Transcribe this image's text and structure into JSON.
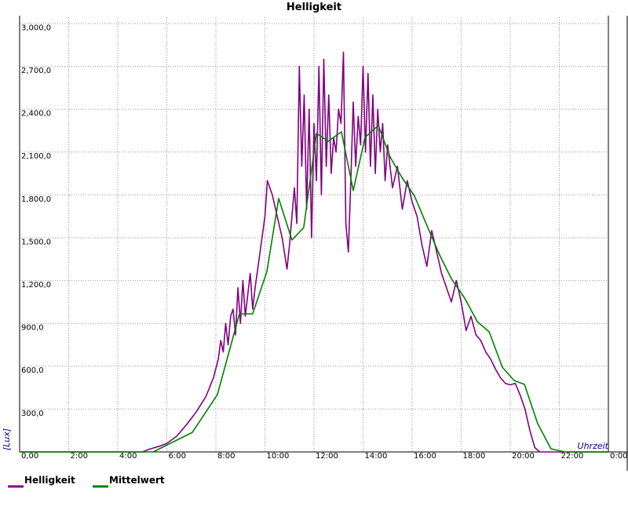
{
  "chart_data": {
    "type": "line",
    "title": "Helligkeit",
    "y_label": "[Lux]",
    "x_label": "Uhrzeit",
    "xlim": [
      0,
      24
    ],
    "ylim": [
      0,
      3000
    ],
    "xticks": [
      {
        "value": 0,
        "label": "0,00"
      },
      {
        "value": 2,
        "label": "2:00"
      },
      {
        "value": 4,
        "label": "4:00"
      },
      {
        "value": 6,
        "label": "6:00"
      },
      {
        "value": 8,
        "label": "8:00"
      },
      {
        "value": 10,
        "label": "10:00"
      },
      {
        "value": 12,
        "label": "12:00"
      },
      {
        "value": 14,
        "label": "14:00"
      },
      {
        "value": 16,
        "label": "16:00"
      },
      {
        "value": 18,
        "label": "18:00"
      },
      {
        "value": 20,
        "label": "20:00"
      },
      {
        "value": 22,
        "label": "22:00"
      },
      {
        "value": 24,
        "label": "0:00"
      }
    ],
    "yticks": [
      {
        "value": 300,
        "label": "300,0"
      },
      {
        "value": 600,
        "label": "600,0"
      },
      {
        "value": 900,
        "label": "900,0"
      },
      {
        "value": 1200,
        "label": "1,200,0"
      },
      {
        "value": 1500,
        "label": "1,500,0"
      },
      {
        "value": 1800,
        "label": "1,800,0"
      },
      {
        "value": 2100,
        "label": "2,100,0"
      },
      {
        "value": 2400,
        "label": "2,400,0"
      },
      {
        "value": 2700,
        "label": "2,700,0"
      },
      {
        "value": 3000,
        "label": "3,000,0"
      }
    ],
    "grid": true,
    "legend": "bottom",
    "series": [
      {
        "name": "Helligkeit",
        "color": "#800080",
        "x": [
          0,
          5.0,
          5.3,
          5.7,
          6.0,
          6.4,
          6.8,
          7.2,
          7.6,
          7.9,
          8.1,
          8.2,
          8.3,
          8.4,
          8.5,
          8.6,
          8.7,
          8.8,
          8.9,
          9.0,
          9.1,
          9.2,
          9.3,
          9.4,
          9.5,
          9.6,
          9.8,
          10.0,
          10.1,
          10.3,
          10.5,
          10.7,
          10.9,
          11.0,
          11.2,
          11.3,
          11.4,
          11.5,
          11.6,
          11.7,
          11.8,
          11.9,
          12.0,
          12.1,
          12.2,
          12.3,
          12.4,
          12.5,
          12.6,
          12.7,
          12.8,
          12.9,
          13.0,
          13.1,
          13.2,
          13.3,
          13.4,
          13.5,
          13.6,
          13.7,
          13.8,
          13.9,
          14.0,
          14.1,
          14.2,
          14.3,
          14.4,
          14.5,
          14.6,
          14.7,
          14.8,
          14.9,
          15.0,
          15.2,
          15.4,
          15.6,
          15.8,
          16.0,
          16.2,
          16.4,
          16.6,
          16.8,
          17.0,
          17.2,
          17.4,
          17.6,
          17.8,
          18.0,
          18.2,
          18.4,
          18.6,
          18.8,
          19.0,
          19.2,
          19.4,
          19.6,
          19.8,
          20.0,
          20.2,
          20.4,
          20.6,
          20.8,
          21.0,
          21.2,
          24
        ],
        "values": [
          0,
          0,
          20,
          40,
          60,
          110,
          190,
          280,
          390,
          520,
          650,
          780,
          700,
          900,
          750,
          950,
          1000,
          820,
          1150,
          900,
          1200,
          950,
          1100,
          1250,
          1000,
          1150,
          1400,
          1650,
          1900,
          1800,
          1650,
          1500,
          1280,
          1450,
          1850,
          1600,
          2700,
          2000,
          2500,
          1700,
          2400,
          1500,
          2300,
          1900,
          2700,
          1800,
          2750,
          2000,
          2500,
          1950,
          2200,
          2100,
          2400,
          2300,
          2800,
          1600,
          1400,
          1900,
          2450,
          2000,
          2350,
          2150,
          2700,
          2100,
          2650,
          2000,
          2500,
          1950,
          2400,
          2100,
          2300,
          1900,
          2150,
          1850,
          2000,
          1700,
          1900,
          1750,
          1650,
          1450,
          1300,
          1550,
          1400,
          1250,
          1150,
          1050,
          1200,
          1050,
          850,
          950,
          820,
          780,
          700,
          650,
          580,
          520,
          480,
          470,
          480,
          400,
          300,
          150,
          30,
          0,
          0
        ]
      },
      {
        "name": "Mittelwert",
        "color": "#008000",
        "x": [
          0,
          5.44,
          7.04,
          8.06,
          8.96,
          9.5,
          10.08,
          10.56,
          11.1,
          11.58,
          12.1,
          12.58,
          13.12,
          13.6,
          14.08,
          14.62,
          15.1,
          15.58,
          16.1,
          16.64,
          17.12,
          17.6,
          18.14,
          18.66,
          19.14,
          19.68,
          20.16,
          20.58,
          21.12,
          21.66,
          22.24,
          24
        ],
        "values": [
          0,
          0,
          137,
          401,
          967,
          967,
          1264,
          1775,
          1484,
          1571,
          2231,
          2176,
          2242,
          1830,
          2203,
          2286,
          2066,
          1923,
          1791,
          1571,
          1379,
          1214,
          1077,
          912,
          841,
          593,
          500,
          473,
          198,
          22,
          0,
          0
        ]
      }
    ]
  }
}
